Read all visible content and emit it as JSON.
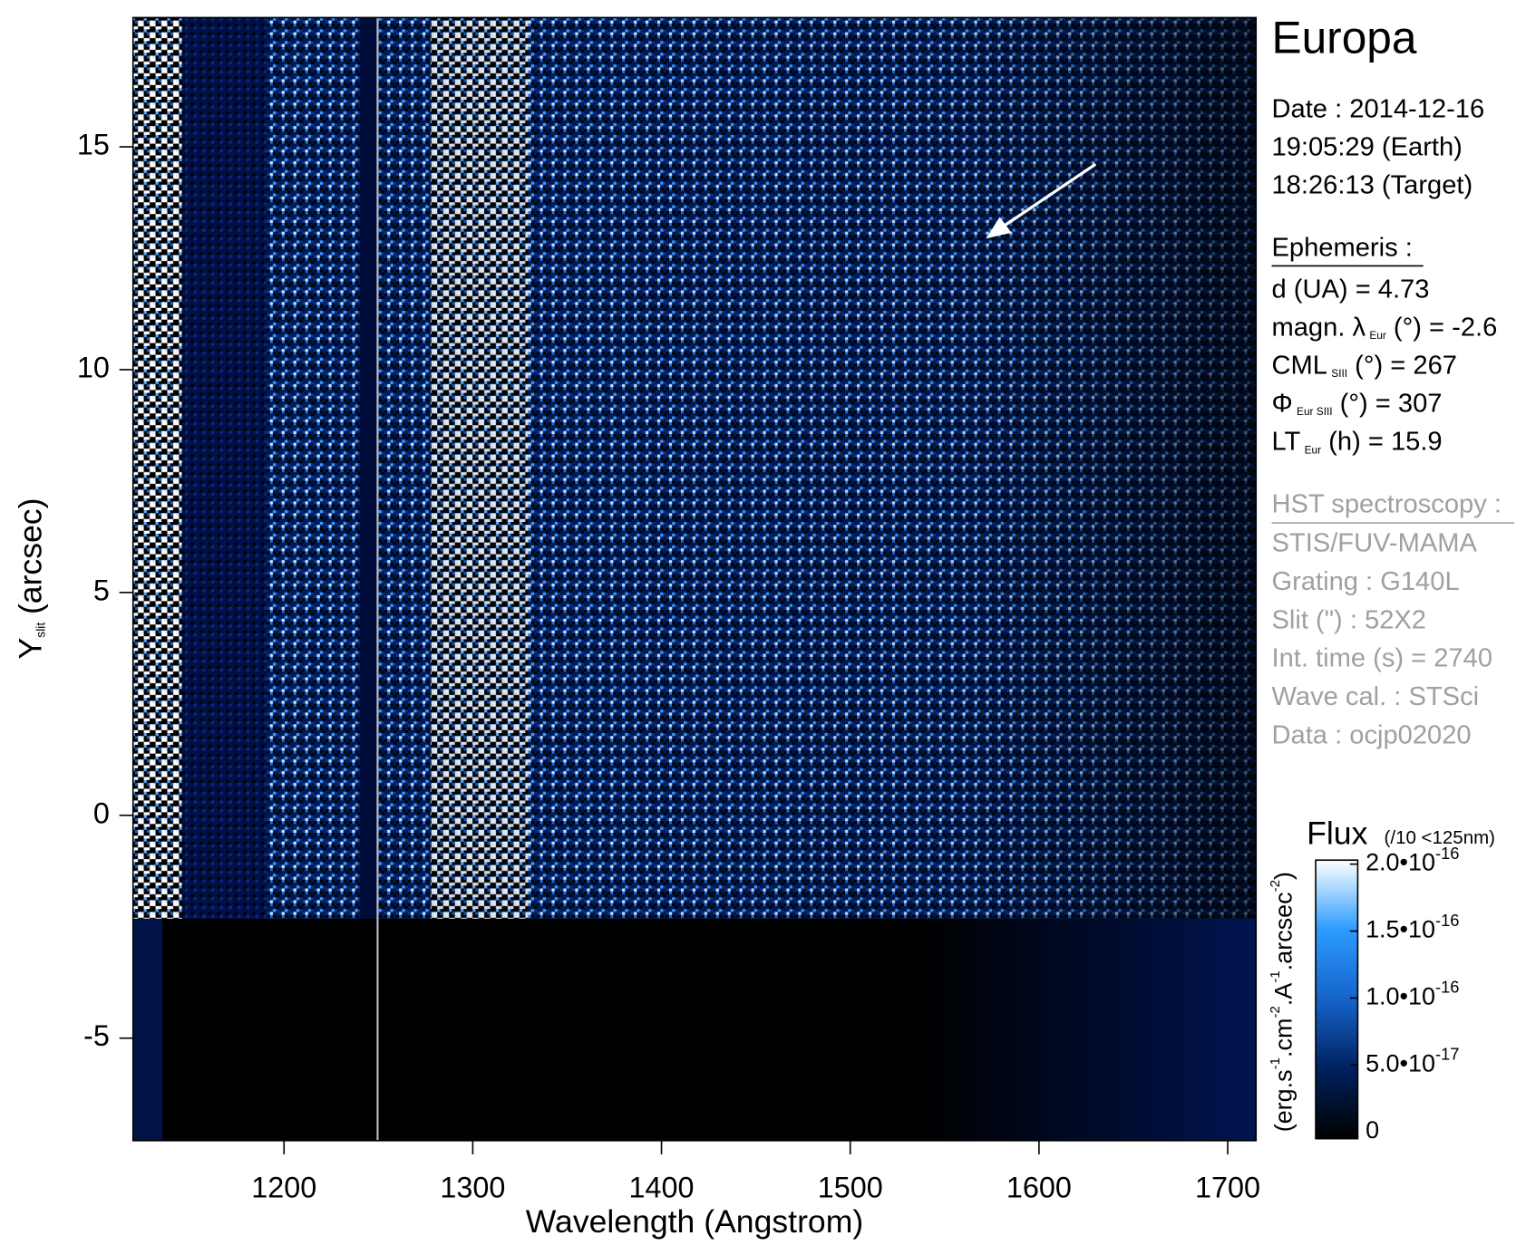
{
  "chart_data": {
    "type": "spectrogram",
    "xlabel": "Wavelength (Angstrom)",
    "ylabel": {
      "main": "Y",
      "sub": "slit",
      "rest": "(arcsec)"
    },
    "xlim": [
      1120,
      1715
    ],
    "xticks": [
      1200,
      1300,
      1400,
      1500,
      1600,
      1700
    ],
    "ylim": [
      -7.3,
      17.9
    ],
    "yticks": [
      -5,
      0,
      5,
      10,
      15
    ],
    "colorbar": {
      "title": "Flux",
      "note": "(/10 <125nm)",
      "unit": [
        {
          "text": "(erg.s"
        },
        {
          "sup": "-1"
        },
        {
          "text": ".cm"
        },
        {
          "sup": "-2"
        },
        {
          "text": ".A"
        },
        {
          "sup": "-1"
        },
        {
          "text": ".arcsec"
        },
        {
          "sup": "-2"
        },
        {
          "text": ")"
        }
      ],
      "lim": [
        -5e-18,
        2.03e-16
      ],
      "colors": [
        "#000000",
        "#00215e",
        "#1663c9",
        "#2b9bff",
        "#ffffff"
      ],
      "ticks": [
        0,
        {
          "value": 5e-17,
          "label": "5.0•10",
          "exponent": "-17"
        },
        {
          "value": 1e-16,
          "label": "1.0•10",
          "exponent": "-16"
        },
        {
          "value": 1.5e-16,
          "label": "1.5•10",
          "exponent": "-16"
        },
        {
          "value": 2e-16,
          "label": "2.0•10",
          "exponent": "-16"
        }
      ]
    }
  },
  "panel": {
    "title": "Europa",
    "date": [
      "Date : 2014-12-16",
      "19:05:29 (Earth)",
      "18:26:13 (Target)"
    ],
    "ephemeris_heading": "Ephemeris :",
    "ephemeris": [
      [
        {
          "text": "d (UA)     = 4.73"
        }
      ],
      [
        {
          "text": "magn. λ"
        },
        {
          "sub": "Eur"
        },
        {
          "text": " (°)  = -2.6"
        }
      ],
      [
        {
          "text": "CML"
        },
        {
          "sub": "SIII"
        },
        {
          "text": " (°) = 267"
        }
      ],
      [
        {
          "text": "Φ"
        },
        {
          "sub": "Eur SIII"
        },
        {
          "text": " (°) = 307"
        }
      ],
      [
        {
          "text": "LT"
        },
        {
          "sub": "Eur"
        },
        {
          "text": " (h) = 15.9"
        }
      ]
    ],
    "hst_heading": "HST spectroscopy :",
    "hst": [
      "STIS/FUV-MAMA",
      "Grating : G140L",
      "Slit (\") : 52X2",
      "Int. time (s) = 2740",
      "Wave cal. : STSci",
      "Data : ocjp02020"
    ]
  }
}
